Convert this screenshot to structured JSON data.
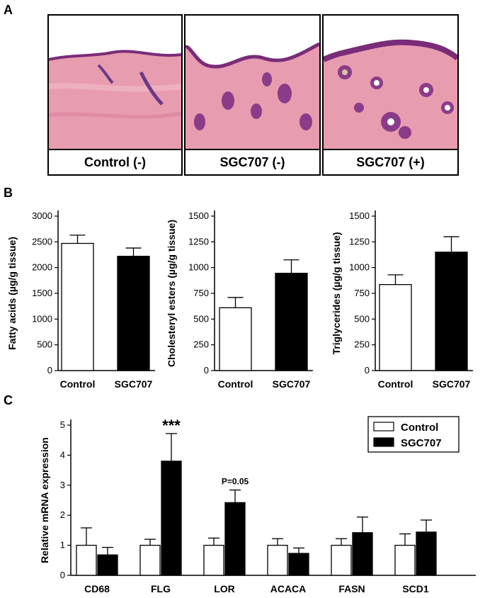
{
  "panels": {
    "a": {
      "letter": "A",
      "images": [
        {
          "label": "Control (-)",
          "description": "H&E stained skin section, control untreated"
        },
        {
          "label": "SGC707 (-)",
          "description": "H&E stained skin section, SGC707 untreated"
        },
        {
          "label": "SGC707 (+)",
          "description": "H&E stained skin section, SGC707 treated"
        }
      ]
    },
    "b": {
      "letter": "B"
    },
    "c": {
      "letter": "C"
    }
  },
  "colors": {
    "control": "#ffffff",
    "sgc707": "#000000",
    "tissue_pink": "#e89aae",
    "tissue_purple": "#7a2c78"
  },
  "chart_data": [
    {
      "type": "bar",
      "categories": [
        "Control",
        "SGC707"
      ],
      "values": [
        2470,
        2220
      ],
      "errors": [
        160,
        160
      ],
      "ylabel": "Fatty acids (µg/g tissue)",
      "ylim": [
        0,
        3000
      ],
      "yticks": [
        0,
        500,
        1000,
        1500,
        2000,
        2500,
        3000
      ]
    },
    {
      "type": "bar",
      "categories": [
        "Control",
        "SGC707"
      ],
      "values": [
        610,
        945
      ],
      "errors": [
        100,
        130
      ],
      "ylabel": "Cholesteryl esters (µg/g tissue)",
      "ylim": [
        0,
        1500
      ],
      "yticks": [
        0,
        250,
        500,
        750,
        1000,
        1250,
        1500
      ]
    },
    {
      "type": "bar",
      "categories": [
        "Control",
        "SGC707"
      ],
      "values": [
        835,
        1150
      ],
      "errors": [
        95,
        150
      ],
      "ylabel": "Triglycerides (µg/g tissue)",
      "ylim": [
        0,
        1500
      ],
      "yticks": [
        0,
        250,
        500,
        750,
        1000,
        1250,
        1500
      ]
    },
    {
      "type": "bar",
      "categories": [
        "CD68",
        "FLG",
        "LOR",
        "ACACA",
        "FASN",
        "SCD1"
      ],
      "series": [
        {
          "name": "Control",
          "values": [
            1.0,
            1.0,
            1.0,
            1.0,
            1.0,
            1.0
          ],
          "errors": [
            0.58,
            0.2,
            0.24,
            0.22,
            0.22,
            0.38
          ]
        },
        {
          "name": "SGC707",
          "values": [
            0.68,
            3.8,
            2.42,
            0.73,
            1.42,
            1.44
          ],
          "errors": [
            0.25,
            0.92,
            0.42,
            0.18,
            0.52,
            0.4
          ]
        }
      ],
      "annotations": [
        {
          "category": "FLG",
          "text": "***"
        },
        {
          "category": "LOR",
          "text": "P=0.05"
        }
      ],
      "ylabel": "Relative mRNA expression",
      "ylim": [
        0,
        5
      ],
      "yticks": [
        0,
        1,
        2,
        3,
        4,
        5
      ],
      "legend": "top-right"
    }
  ]
}
